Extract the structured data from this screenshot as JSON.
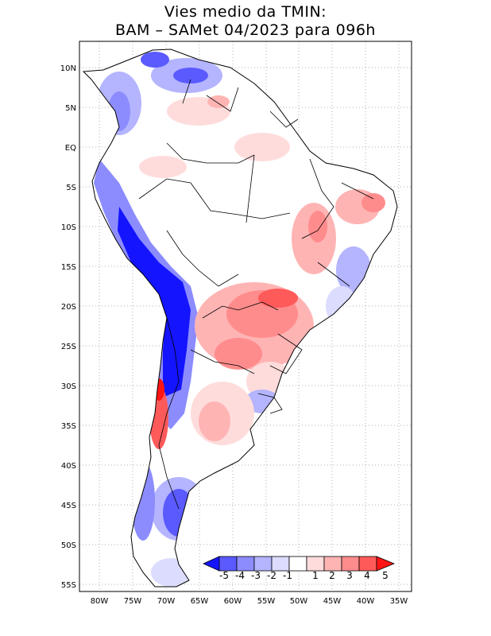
{
  "title": {
    "line1": "Vies medio da TMIN:",
    "line2": "BAM – SAMet 04/2023  para 096h"
  },
  "axes": {
    "lat_labels": [
      "10N",
      "5N",
      "EQ",
      "5S",
      "10S",
      "15S",
      "20S",
      "25S",
      "30S",
      "35S",
      "40S",
      "45S",
      "50S",
      "55S"
    ],
    "lon_labels": [
      "80W",
      "75W",
      "70W",
      "65W",
      "60W",
      "55W",
      "50W",
      "45W",
      "40W",
      "35W"
    ],
    "lon_range": [
      -83,
      -34
    ],
    "lat_range": [
      -56,
      13
    ]
  },
  "colorbar": {
    "labels": [
      "-5",
      "-4",
      "-3",
      "-2",
      "-1",
      "1",
      "2",
      "3",
      "4",
      "5"
    ],
    "colors": [
      "#1414ff",
      "#5a5aff",
      "#8c8cff",
      "#b4b4ff",
      "#dcdcff",
      "#ffffff",
      "#ffdcdc",
      "#ffb4b4",
      "#ff8c8c",
      "#ff5a5a",
      "#ff1414"
    ]
  },
  "map": {
    "continent": "South America",
    "variable": "TMIN bias",
    "grid": "dotted"
  }
}
